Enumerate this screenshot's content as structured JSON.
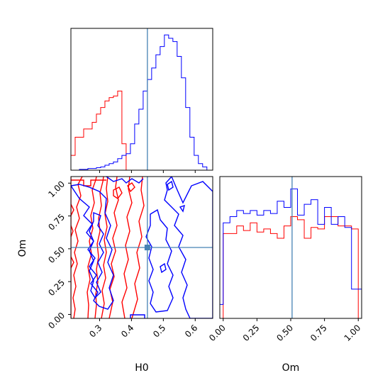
{
  "chart_data": {
    "type": "corner",
    "parameters": [
      "H0",
      "Om"
    ],
    "truth": {
      "H0": 0.45,
      "Om": 0.51
    },
    "colors": {
      "red": "#ff0000",
      "blue": "#0000ff",
      "truth": "#4682b4"
    },
    "x_ticks": {
      "H0": [
        {
          "value": 0.3,
          "label": "0.3"
        },
        {
          "value": 0.4,
          "label": "0.4"
        },
        {
          "value": 0.5,
          "label": "0.5"
        },
        {
          "value": 0.6,
          "label": "0.6"
        }
      ],
      "Om": [
        {
          "value": 0.0,
          "label": "0.00"
        },
        {
          "value": 0.25,
          "label": "0.25"
        },
        {
          "value": 0.5,
          "label": "0.50"
        },
        {
          "value": 0.75,
          "label": "0.75"
        },
        {
          "value": 1.0,
          "label": "1.00"
        }
      ]
    },
    "y_ticks": {
      "Om": [
        {
          "value": 0.0,
          "label": "0.00"
        },
        {
          "value": 0.25,
          "label": "0.25"
        },
        {
          "value": 0.5,
          "label": "0.50"
        },
        {
          "value": 0.75,
          "label": "0.75"
        },
        {
          "value": 1.0,
          "label": "1.00"
        }
      ]
    },
    "xlim": {
      "H0": [
        0.21,
        0.655
      ],
      "Om": [
        -0.025,
        1.025
      ]
    },
    "ylim": {
      "Om": [
        -0.03,
        1.05
      ]
    },
    "hist_H0": {
      "red": {
        "edges": [
          0.21,
          0.2233,
          0.2367,
          0.25,
          0.2633,
          0.2767,
          0.29,
          0.3033,
          0.3167,
          0.33,
          0.3433,
          0.3567,
          0.37,
          0.3833
        ],
        "counts": [
          0.09,
          0.2,
          0.2,
          0.25,
          0.25,
          0.29,
          0.34,
          0.38,
          0.42,
          0.44,
          0.45,
          0.48,
          0.16
        ]
      },
      "blue": {
        "edges": [
          0.21,
          0.2233,
          0.2367,
          0.25,
          0.2633,
          0.2767,
          0.29,
          0.3033,
          0.3167,
          0.33,
          0.3433,
          0.3567,
          0.37,
          0.3833,
          0.3967,
          0.41,
          0.4233,
          0.4367,
          0.45,
          0.4633,
          0.4767,
          0.49,
          0.5033,
          0.5167,
          0.53,
          0.5433,
          0.5567,
          0.57,
          0.5833,
          0.5967,
          0.61,
          0.6233,
          0.6367,
          0.65
        ],
        "counts": [
          0,
          0,
          0.005,
          0.005,
          0.01,
          0.01,
          0.015,
          0.02,
          0.03,
          0.04,
          0.05,
          0.07,
          0.09,
          0.1,
          0.16,
          0.28,
          0.37,
          0.48,
          0.55,
          0.62,
          0.7,
          0.75,
          0.82,
          0.8,
          0.78,
          0.69,
          0.56,
          0.38,
          0.2,
          0.09,
          0.04,
          0.02,
          0.0
        ]
      }
    },
    "hist_Om": {
      "edges": [
        -0.025,
        0,
        0.05,
        0.1,
        0.15,
        0.2,
        0.25,
        0.3,
        0.35,
        0.4,
        0.45,
        0.5,
        0.55,
        0.6,
        0.65,
        0.7,
        0.75,
        0.8,
        0.85,
        0.9,
        0.95,
        1.0,
        1.025
      ],
      "red": [
        0,
        0.55,
        0.55,
        0.6,
        0.57,
        0.62,
        0.56,
        0.58,
        0.55,
        0.52,
        0.6,
        0.66,
        0.64,
        0.52,
        0.59,
        0.58,
        0.66,
        0.66,
        0.6,
        0.6,
        0.58,
        0
      ],
      "blue": [
        0.09,
        0.62,
        0.66,
        0.7,
        0.68,
        0.7,
        0.67,
        0.7,
        0.68,
        0.76,
        0.72,
        0.84,
        0.67,
        0.74,
        0.77,
        0.61,
        0.72,
        0.61,
        0.66,
        0.59,
        0.19,
        0.19
      ]
    }
  }
}
